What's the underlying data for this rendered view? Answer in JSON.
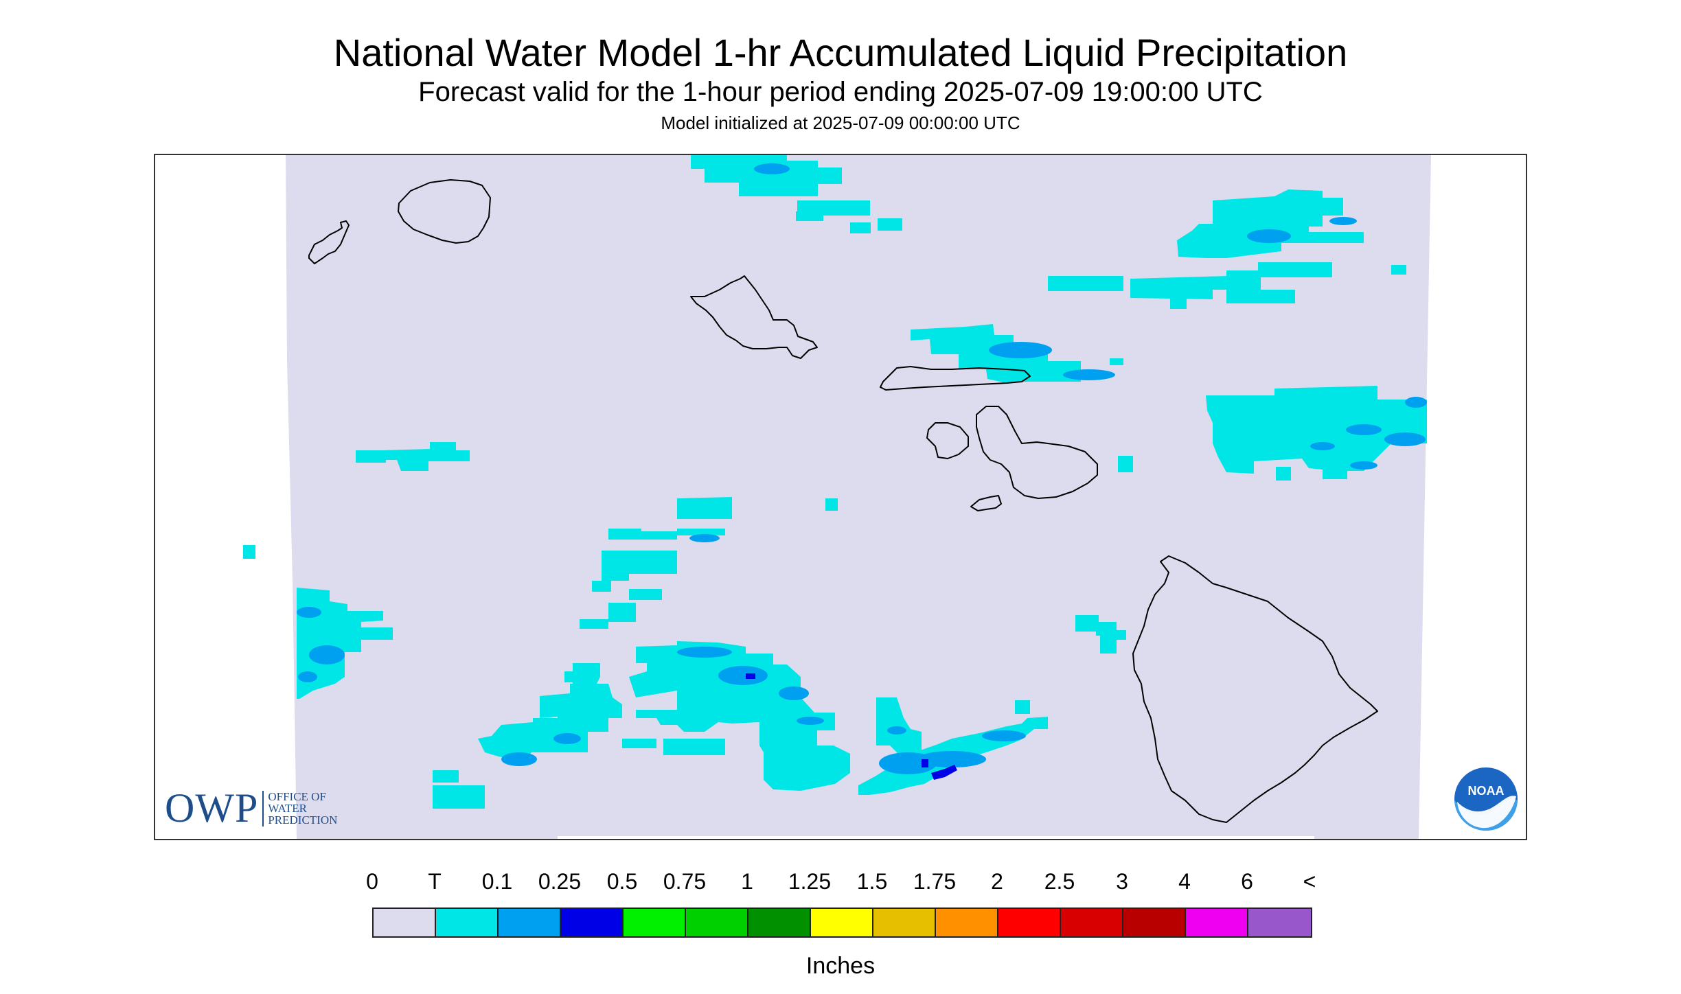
{
  "header": {
    "title": "National Water Model 1-hr Accumulated Liquid Precipitation",
    "subtitle": "Forecast valid for the 1-hour period ending 2025-07-09 19:00:00 UTC",
    "init": "Model initialized at 2025-07-09 00:00:00 UTC"
  },
  "map": {
    "background_color": "#dcdcee",
    "coast_color": "#000000",
    "islands": [
      "Niihau",
      "Kauai",
      "Oahu",
      "Molokai",
      "Lanai",
      "Maui",
      "Kahoolawe",
      "Hawaii"
    ],
    "precip_levels_shown": [
      "T",
      "0.1",
      "0.25"
    ]
  },
  "logos": {
    "owp_letters": "OWP",
    "owp_text": [
      "OFFICE OF",
      "WATER",
      "PREDICTION"
    ],
    "noaa_text": "NOAA"
  },
  "legend": {
    "labels": [
      "0",
      "T",
      "0.1",
      "0.25",
      "0.5",
      "0.75",
      "1",
      "1.25",
      "1.5",
      "1.75",
      "2",
      "2.5",
      "3",
      "4",
      "6",
      "<"
    ],
    "colors": [
      "#dcdcee",
      "#00e6e6",
      "#00a0f0",
      "#0000e6",
      "#00f000",
      "#00d000",
      "#009000",
      "#ffff00",
      "#e6c000",
      "#ff9000",
      "#ff0000",
      "#d80000",
      "#b80000",
      "#f000f0",
      "#9858cc"
    ],
    "units": "Inches"
  }
}
